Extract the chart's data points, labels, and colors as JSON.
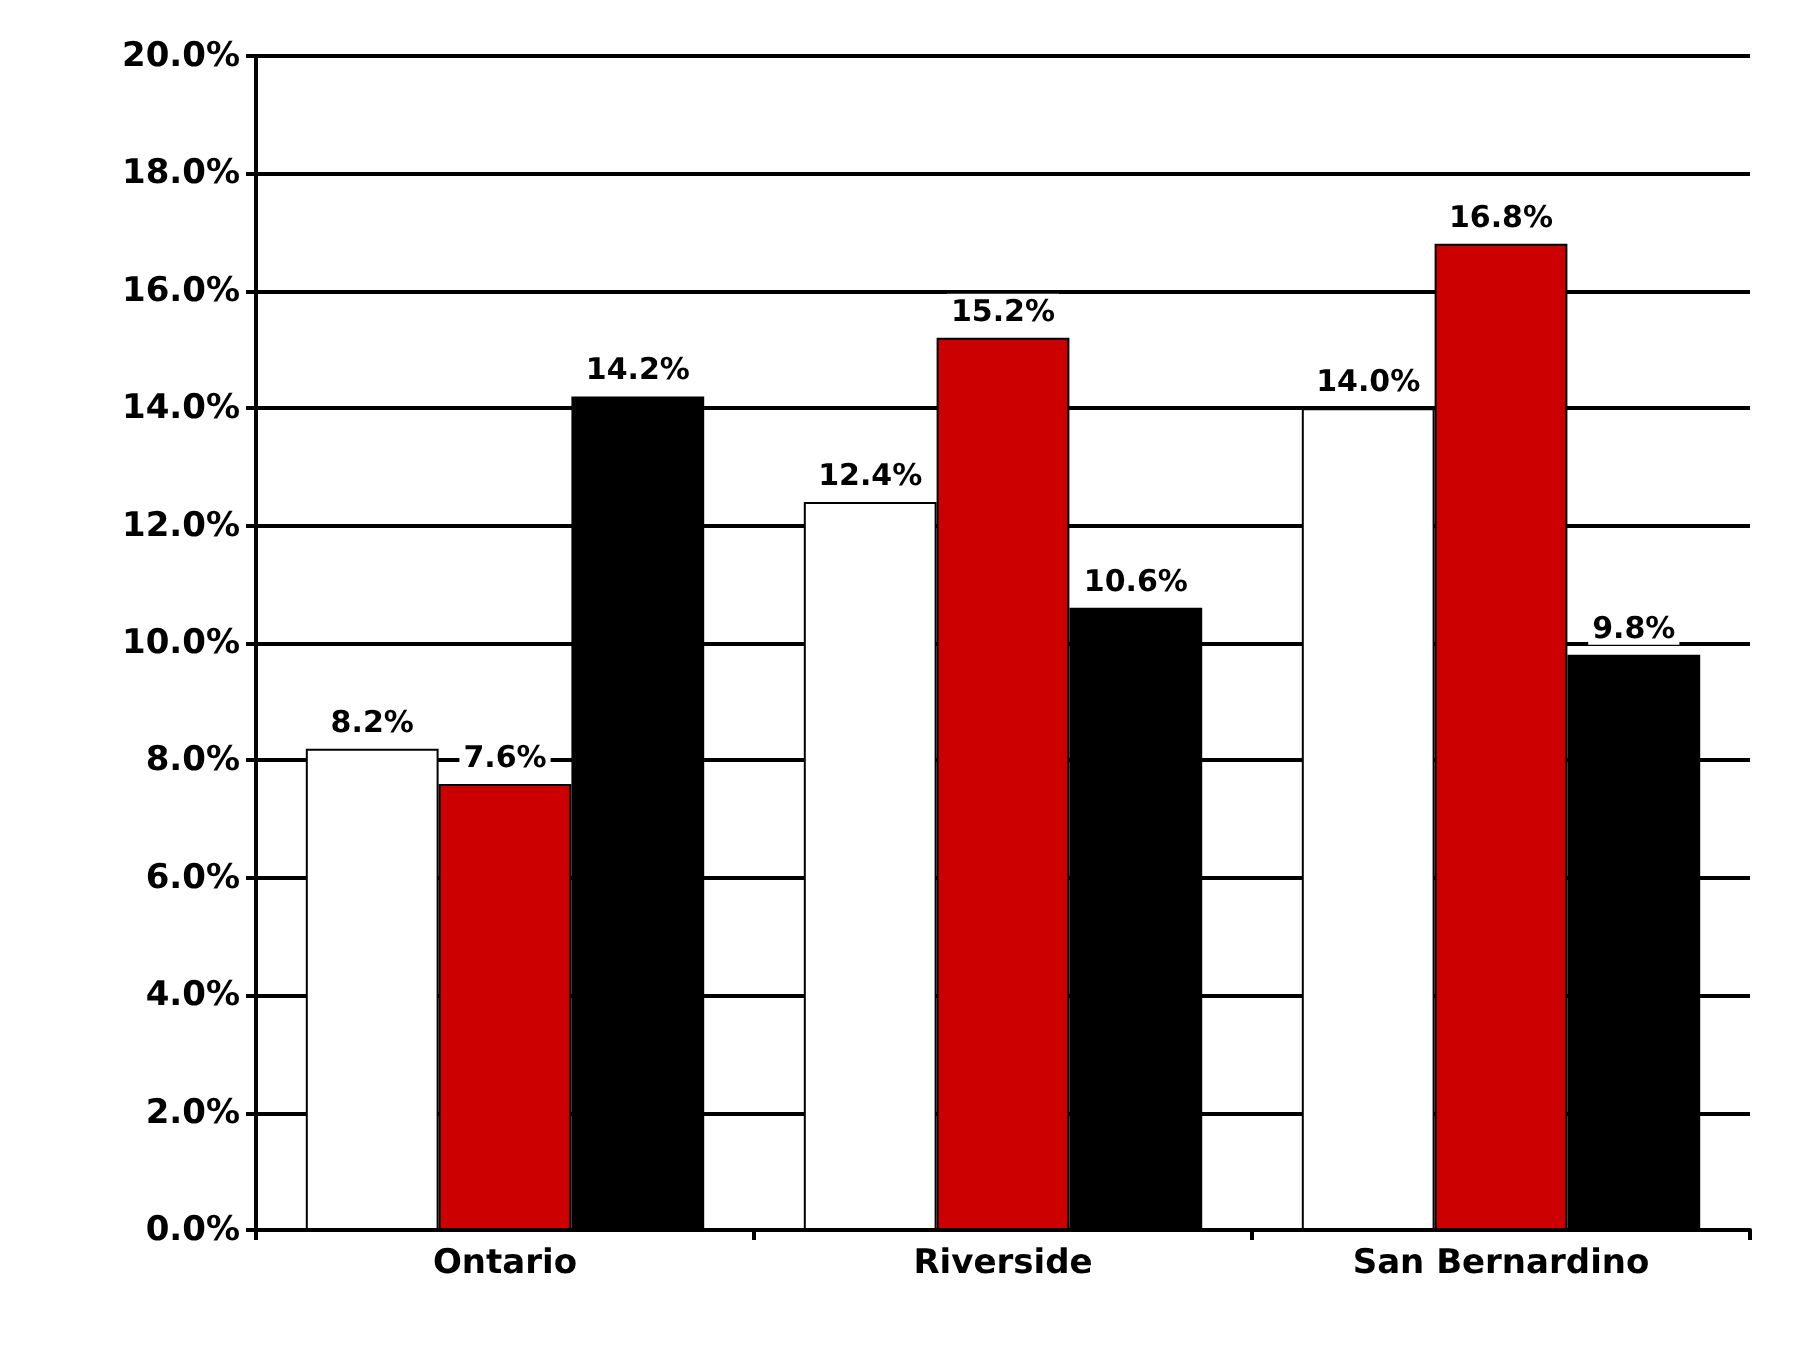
{
  "chart_data": {
    "type": "bar",
    "categories": [
      "Ontario",
      "Riverside",
      "San Bernardino"
    ],
    "series": [
      {
        "color": "#ffffff",
        "values": [
          8.2,
          12.4,
          14.0
        ],
        "value_labels": [
          "8.2%",
          "12.4%",
          "14.0%"
        ]
      },
      {
        "color": "#cc0000",
        "values": [
          7.6,
          15.2,
          16.8
        ],
        "value_labels": [
          "7.6%",
          "15.2%",
          "16.8%"
        ]
      },
      {
        "color": "#000000",
        "values": [
          14.2,
          10.6,
          9.8
        ],
        "value_labels": [
          "14.2%",
          "10.6%",
          "9.8%"
        ]
      }
    ],
    "ylim": [
      0,
      20
    ],
    "yticks": [
      {
        "value": 0,
        "label": "0.0%"
      },
      {
        "value": 2,
        "label": "2.0%"
      },
      {
        "value": 4,
        "label": "4.0%"
      },
      {
        "value": 6,
        "label": "6.0%"
      },
      {
        "value": 8,
        "label": "8.0%"
      },
      {
        "value": 10,
        "label": "10.0%"
      },
      {
        "value": 12,
        "label": "12.0%"
      },
      {
        "value": 14,
        "label": "14.0%"
      },
      {
        "value": 16,
        "label": "16.0%"
      },
      {
        "value": 18,
        "label": "18.0%"
      },
      {
        "value": 20,
        "label": "20.0%"
      }
    ],
    "grid": "y"
  }
}
